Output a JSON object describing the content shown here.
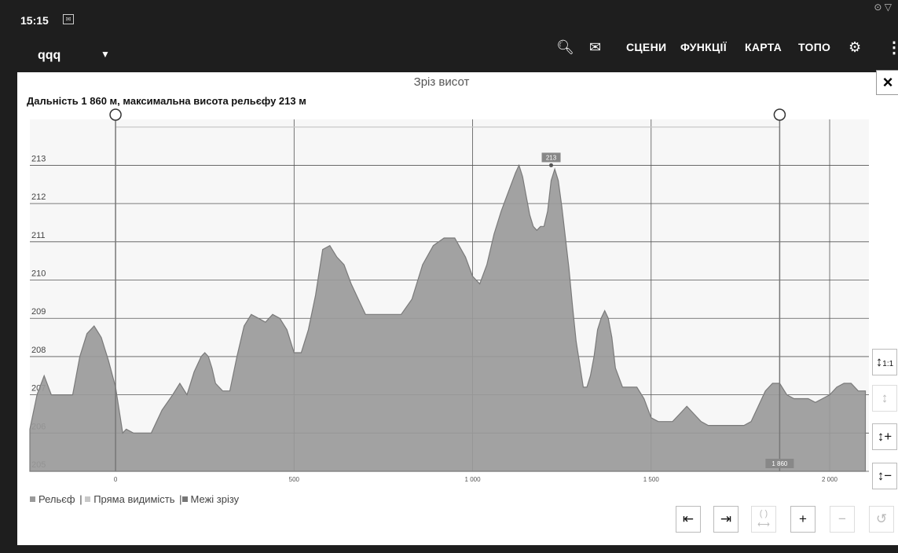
{
  "status": {
    "time": "15:15"
  },
  "appbar": {
    "map_name": "qqq",
    "menus": [
      "СЦЕНИ",
      "ФУНКЦІЇ",
      "КАРТА",
      "ТОПО"
    ]
  },
  "panel": {
    "title": "Зріз висот",
    "summary": "Дальність 1 860 м, максимальна висота рельєфу 213 м",
    "close_label": "×"
  },
  "legend": {
    "items": [
      {
        "label": "Рельєф",
        "color": "#9a9a9a"
      },
      {
        "label": "Пряма видимість",
        "color": "#c8c8c8"
      },
      {
        "label": "Межі зрізу",
        "color": "#777777"
      }
    ]
  },
  "buttons": {
    "scale_1to1": "1:1"
  },
  "chart_data": {
    "type": "area",
    "x_ticks": [
      0,
      500,
      1000,
      1500,
      2000
    ],
    "x_tick_labels": [
      "0",
      "500",
      "1 000",
      "1 500",
      "2 000"
    ],
    "y_ticks": [
      205,
      206,
      207,
      208,
      209,
      210,
      211,
      212,
      213
    ],
    "xlim": [
      -240,
      2110
    ],
    "ylim": [
      205,
      214.2
    ],
    "grid": true,
    "series": [
      {
        "name": "Рельєф",
        "x": [
          -240,
          -220,
          -200,
          -180,
          -160,
          -140,
          -120,
          -100,
          -80,
          -60,
          -40,
          -20,
          0,
          20,
          30,
          50,
          70,
          100,
          130,
          160,
          180,
          200,
          220,
          240,
          250,
          260,
          270,
          280,
          300,
          320,
          340,
          360,
          380,
          400,
          420,
          440,
          460,
          480,
          500,
          520,
          540,
          560,
          580,
          600,
          620,
          640,
          660,
          680,
          700,
          720,
          740,
          760,
          780,
          800,
          830,
          860,
          890,
          920,
          950,
          980,
          1000,
          1020,
          1040,
          1060,
          1080,
          1100,
          1120,
          1130,
          1140,
          1150,
          1160,
          1170,
          1180,
          1190,
          1200,
          1210,
          1220,
          1230,
          1240,
          1250,
          1260,
          1270,
          1280,
          1290,
          1300,
          1310,
          1320,
          1330,
          1340,
          1350,
          1360,
          1370,
          1380,
          1390,
          1400,
          1420,
          1440,
          1460,
          1480,
          1500,
          1520,
          1540,
          1560,
          1580,
          1600,
          1620,
          1640,
          1660,
          1680,
          1700,
          1720,
          1740,
          1760,
          1780,
          1800,
          1820,
          1840,
          1860,
          1880,
          1900,
          1920,
          1940,
          1960,
          1980,
          2000,
          2020,
          2040,
          2060,
          2080,
          2100
        ],
        "y": [
          206.1,
          207.0,
          207.5,
          207.0,
          207.0,
          207.0,
          207.0,
          208.0,
          208.6,
          208.8,
          208.5,
          207.9,
          207.2,
          206.0,
          206.1,
          206.0,
          206.0,
          206.0,
          206.6,
          207.0,
          207.3,
          207.0,
          207.6,
          208.0,
          208.1,
          208.0,
          207.7,
          207.3,
          207.1,
          207.1,
          208.0,
          208.8,
          209.1,
          209.0,
          208.9,
          209.1,
          209.0,
          208.7,
          208.1,
          208.1,
          208.7,
          209.6,
          210.8,
          210.9,
          210.6,
          210.4,
          209.9,
          209.5,
          209.1,
          209.1,
          209.1,
          209.1,
          209.1,
          209.1,
          209.5,
          210.4,
          210.9,
          211.1,
          211.1,
          210.6,
          210.1,
          209.9,
          210.4,
          211.2,
          211.8,
          212.3,
          212.8,
          213.0,
          212.7,
          212.2,
          211.7,
          211.4,
          211.3,
          211.4,
          211.4,
          211.8,
          212.6,
          212.9,
          212.6,
          211.9,
          211.1,
          210.3,
          209.3,
          208.4,
          207.8,
          207.2,
          207.2,
          207.5,
          208.0,
          208.7,
          209.0,
          209.2,
          209.0,
          208.5,
          207.7,
          207.2,
          207.2,
          207.2,
          206.9,
          206.4,
          206.3,
          206.3,
          206.3,
          206.5,
          206.7,
          206.5,
          206.3,
          206.2,
          206.2,
          206.2,
          206.2,
          206.2,
          206.2,
          206.3,
          206.7,
          207.1,
          207.3,
          207.3,
          207.0,
          206.9,
          206.9,
          206.9,
          206.8,
          206.9,
          207.0,
          207.2,
          207.3,
          207.3,
          207.1,
          207.1
        ],
        "color": "#9a9a9a"
      },
      {
        "name": "Пряма видимість",
        "x": [
          0,
          1860
        ],
        "y": [
          214.0,
          214.0
        ],
        "color": "#c8c8c8"
      }
    ],
    "annotations": [
      {
        "text": "213",
        "x": 1220,
        "y": 213.0
      },
      {
        "text": "1 860",
        "x": 1860,
        "y": 205.0
      }
    ],
    "cut_markers": [
      0,
      1860
    ]
  }
}
